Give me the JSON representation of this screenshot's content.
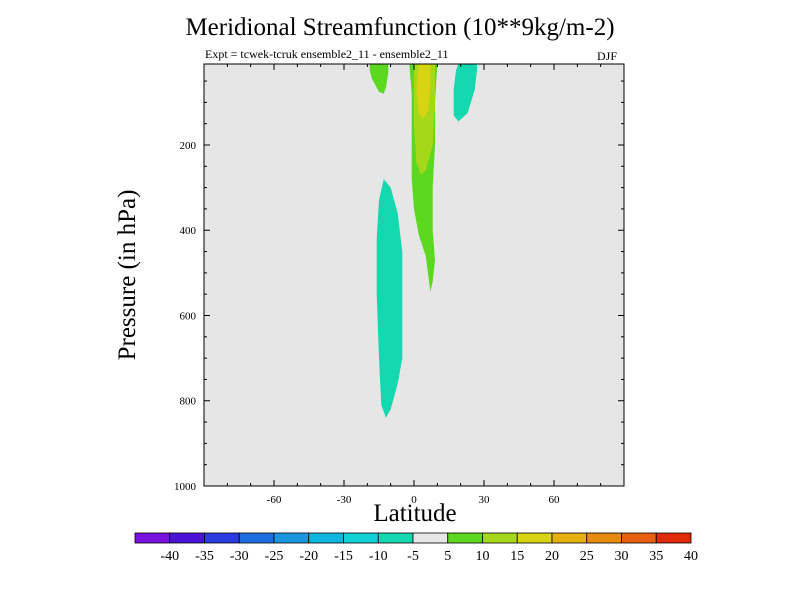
{
  "chart_data": {
    "type": "heatmap",
    "title": "Meridional Streamfunction (10**9kg/m-2)",
    "subtitle": "Expt = tcwek-tcruk ensemble2_11 - ensemble2_11",
    "season": "DJF",
    "xlabel": "Latitude",
    "ylabel": "Pressure (in hPa)",
    "xlim": [
      -90,
      90
    ],
    "ylim": [
      1000,
      10
    ],
    "x_ticks": [
      -60,
      -30,
      0,
      30,
      60
    ],
    "x_tick_labels": [
      "-60",
      "-30",
      "0",
      "30",
      "60"
    ],
    "y_ticks": [
      200,
      400,
      600,
      800,
      1000
    ],
    "y_tick_labels": [
      "200",
      "400",
      "600",
      "800",
      "1000"
    ],
    "background_color": "#e6e6e6",
    "colorbar": {
      "labels": [
        "-40",
        "-35",
        "-30",
        "-25",
        "-20",
        "-15",
        "-10",
        "-5",
        "5",
        "10",
        "15",
        "20",
        "25",
        "30",
        "35",
        "40"
      ],
      "colors": [
        "#7a10dc",
        "#4a14d8",
        "#2a3ce0",
        "#1e6ee0",
        "#1a96e0",
        "#10b6e0",
        "#10d0d8",
        "#14d8b0",
        "#e6e6e6",
        "#5cd820",
        "#a6d81a",
        "#d8d414",
        "#e6b010",
        "#e68a10",
        "#e66010",
        "#e02a08"
      ]
    },
    "contours": [
      {
        "name": "negative-cell-northern-upper",
        "level_range": "-10 to -5",
        "color": "#14d8b0",
        "polygon": [
          [
            20,
            10
          ],
          [
            27,
            10
          ],
          [
            27,
            25
          ],
          [
            26,
            70
          ],
          [
            23,
            125
          ],
          [
            19,
            145
          ],
          [
            17,
            130
          ],
          [
            17,
            70
          ],
          [
            18,
            25
          ],
          [
            19,
            10
          ]
        ]
      },
      {
        "name": "negative-cell-southern-deep",
        "level_range": "-10 to -5",
        "color": "#14d8b0",
        "polygon": [
          [
            -13,
            280
          ],
          [
            -10,
            300
          ],
          [
            -7,
            360
          ],
          [
            -5,
            450
          ],
          [
            -5,
            600
          ],
          [
            -5,
            700
          ],
          [
            -7,
            760
          ],
          [
            -10,
            820
          ],
          [
            -12,
            840
          ],
          [
            -14,
            810
          ],
          [
            -15,
            700
          ],
          [
            -16,
            550
          ],
          [
            -16,
            420
          ],
          [
            -15,
            330
          ]
        ]
      },
      {
        "name": "positive-cell-southern-upper",
        "level_range": "5 to 10",
        "color": "#5cd820",
        "polygon": [
          [
            -19,
            10
          ],
          [
            -11,
            10
          ],
          [
            -11,
            30
          ],
          [
            -12,
            65
          ],
          [
            -13,
            80
          ],
          [
            -15,
            75
          ],
          [
            -18,
            45
          ],
          [
            -19,
            25
          ]
        ]
      },
      {
        "name": "positive-cell-equatorial",
        "level_range": "5 to 10",
        "color": "#5cd820",
        "polygon": [
          [
            -2,
            10
          ],
          [
            10,
            10
          ],
          [
            9,
            100
          ],
          [
            9,
            200
          ],
          [
            8,
            300
          ],
          [
            8,
            400
          ],
          [
            9,
            470
          ],
          [
            8,
            520
          ],
          [
            7,
            545
          ],
          [
            6,
            500
          ],
          [
            5,
            460
          ],
          [
            2,
            410
          ],
          [
            0,
            350
          ],
          [
            -1,
            280
          ],
          [
            -1,
            180
          ],
          [
            -1,
            80
          ]
        ]
      },
      {
        "name": "positive-cell-equatorial-core",
        "level_range": "10 to 15",
        "color": "#a6d81a",
        "polygon": [
          [
            0,
            10
          ],
          [
            9,
            10
          ],
          [
            9,
            100
          ],
          [
            8,
            200
          ],
          [
            5,
            260
          ],
          [
            3,
            270
          ],
          [
            1,
            240
          ],
          [
            0,
            150
          ]
        ]
      },
      {
        "name": "positive-cell-equatorial-peak",
        "level_range": "15 to 20",
        "color": "#d8d414",
        "polygon": [
          [
            2,
            10
          ],
          [
            7,
            10
          ],
          [
            7,
            70
          ],
          [
            6,
            120
          ],
          [
            4,
            140
          ],
          [
            2,
            125
          ],
          [
            1,
            70
          ]
        ]
      }
    ]
  }
}
